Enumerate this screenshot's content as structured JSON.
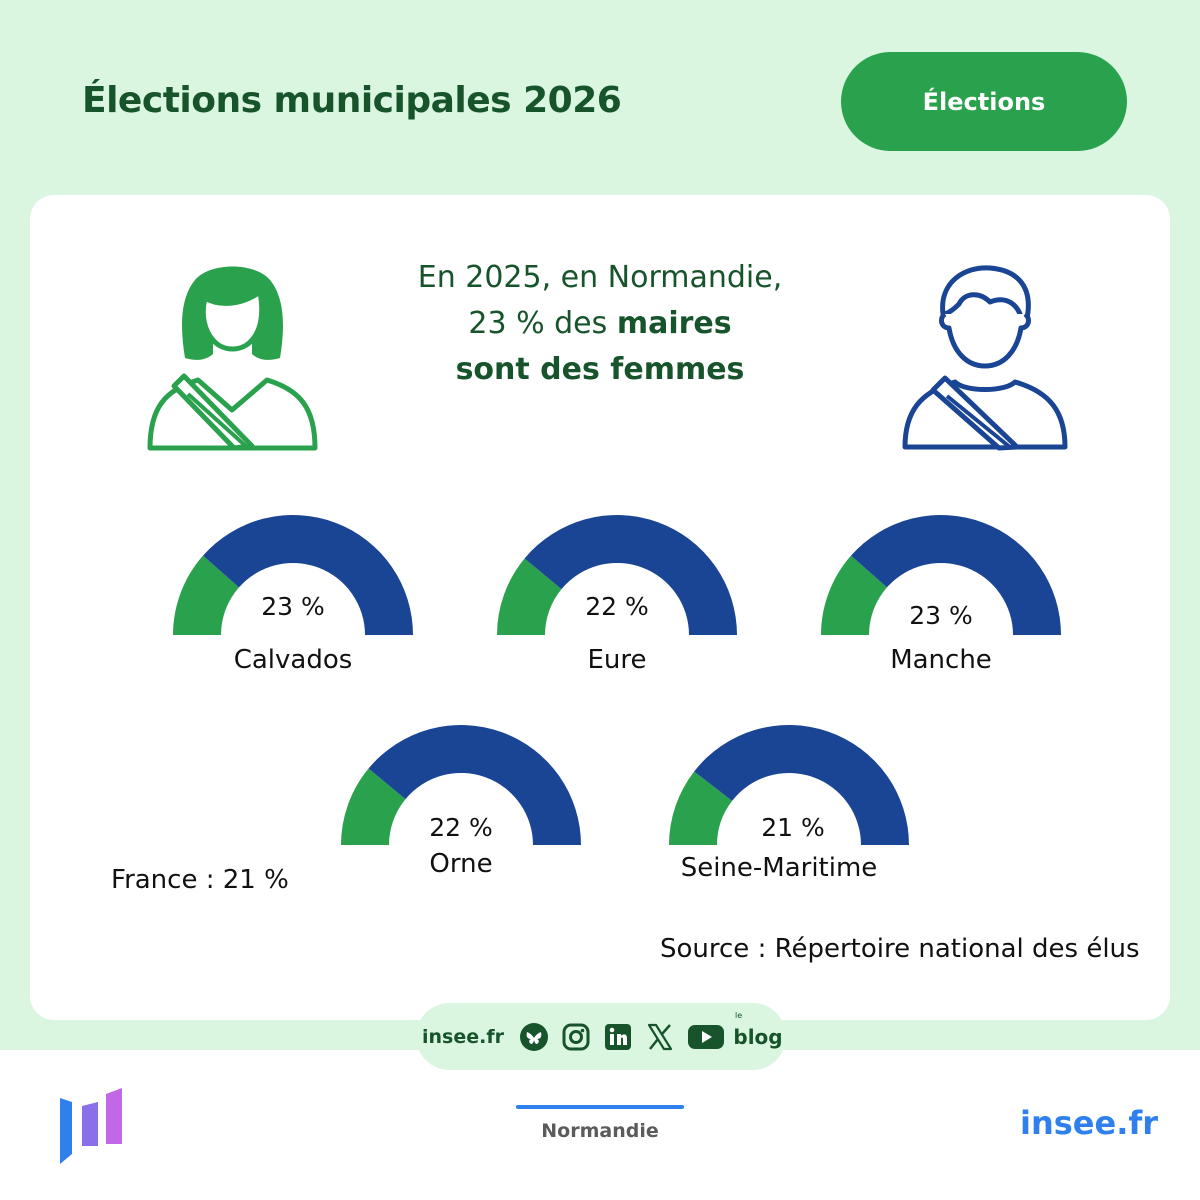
{
  "header": {
    "title": "Élections municipales 2026",
    "tag": "Élections"
  },
  "headline": {
    "line1": "En 2025, en Normandie,",
    "line2_plain": "23 % des",
    "line2_bold": "maires",
    "line3_bold": "sont des femmes"
  },
  "icons": {
    "woman": "woman-mayor-sash-icon",
    "man": "man-mayor-sash-icon"
  },
  "colors": {
    "women": "#2aa14c",
    "men": "#1a4494",
    "title": "#17542b",
    "brand_blue": "#2f80ed"
  },
  "chart_data": {
    "type": "gauge",
    "series": [
      {
        "name": "Femmes",
        "color": "#2aa14c"
      },
      {
        "name": "Hommes",
        "color": "#1a4494"
      }
    ],
    "items": [
      {
        "label": "Calvados",
        "value": 23,
        "value_label": "23 %"
      },
      {
        "label": "Eure",
        "value": 22,
        "value_label": "22 %"
      },
      {
        "label": "Manche",
        "value": 23,
        "value_label": "23 %"
      },
      {
        "label": "Orne",
        "value": 22,
        "value_label": "22 %"
      },
      {
        "label": "Seine-Maritime",
        "value": 21,
        "value_label": "21 %"
      }
    ],
    "unit": "%",
    "range": [
      0,
      100
    ]
  },
  "notes": {
    "france": "France : 21 %",
    "source": "Source : Répertoire national des élus"
  },
  "social": {
    "site": "insee.fr",
    "icons": [
      "bluesky-icon",
      "instagram-icon",
      "linkedin-icon",
      "x-icon",
      "youtube-icon",
      "blog-icon"
    ],
    "blog_small": "le",
    "blog_label": "blog"
  },
  "footer": {
    "region": "Normandie",
    "site": "insee.fr"
  }
}
